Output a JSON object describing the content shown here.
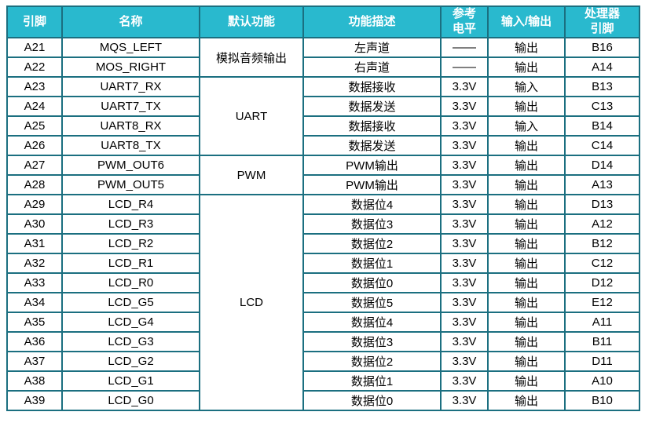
{
  "table": {
    "headers": [
      "引脚",
      "名称",
      "默认功能",
      "功能描述",
      "参考\n电平",
      "输入/输出",
      "处理器\n引脚"
    ],
    "groups": [
      {
        "label": "模拟音频输出",
        "span": 2
      },
      {
        "label": "UART",
        "span": 4
      },
      {
        "label": "PWM",
        "span": 2
      },
      {
        "label": "LCD",
        "span": 11
      }
    ],
    "rows": [
      {
        "pin": "A21",
        "name": "MQS_LEFT",
        "desc": "左声道",
        "level": "——",
        "io": "输出",
        "proc": "B16"
      },
      {
        "pin": "A22",
        "name": "MOS_RIGHT",
        "desc": "右声道",
        "level": "——",
        "io": "输出",
        "proc": "A14"
      },
      {
        "pin": "A23",
        "name": "UART7_RX",
        "desc": "数据接收",
        "level": "3.3V",
        "io": "输入",
        "proc": "B13"
      },
      {
        "pin": "A24",
        "name": "UART7_TX",
        "desc": "数据发送",
        "level": "3.3V",
        "io": "输出",
        "proc": "C13"
      },
      {
        "pin": "A25",
        "name": "UART8_RX",
        "desc": "数据接收",
        "level": "3.3V",
        "io": "输入",
        "proc": "B14"
      },
      {
        "pin": "A26",
        "name": "UART8_TX",
        "desc": "数据发送",
        "level": "3.3V",
        "io": "输出",
        "proc": "C14"
      },
      {
        "pin": "A27",
        "name": "PWM_OUT6",
        "desc": "PWM输出",
        "level": "3.3V",
        "io": "输出",
        "proc": "D14"
      },
      {
        "pin": "A28",
        "name": "PWM_OUT5",
        "desc": "PWM输出",
        "level": "3.3V",
        "io": "输出",
        "proc": "A13"
      },
      {
        "pin": "A29",
        "name": "LCD_R4",
        "desc": "数据位4",
        "level": "3.3V",
        "io": "输出",
        "proc": "D13"
      },
      {
        "pin": "A30",
        "name": "LCD_R3",
        "desc": "数据位3",
        "level": "3.3V",
        "io": "输出",
        "proc": "A12"
      },
      {
        "pin": "A31",
        "name": "LCD_R2",
        "desc": "数据位2",
        "level": "3.3V",
        "io": "输出",
        "proc": "B12"
      },
      {
        "pin": "A32",
        "name": "LCD_R1",
        "desc": "数据位1",
        "level": "3.3V",
        "io": "输出",
        "proc": "C12"
      },
      {
        "pin": "A33",
        "name": "LCD_R0",
        "desc": "数据位0",
        "level": "3.3V",
        "io": "输出",
        "proc": "D12"
      },
      {
        "pin": "A34",
        "name": "LCD_G5",
        "desc": "数据位5",
        "level": "3.3V",
        "io": "输出",
        "proc": "E12"
      },
      {
        "pin": "A35",
        "name": "LCD_G4",
        "desc": "数据位4",
        "level": "3.3V",
        "io": "输出",
        "proc": "A11"
      },
      {
        "pin": "A36",
        "name": "LCD_G3",
        "desc": "数据位3",
        "level": "3.3V",
        "io": "输出",
        "proc": "B11"
      },
      {
        "pin": "A37",
        "name": "LCD_G2",
        "desc": "数据位2",
        "level": "3.3V",
        "io": "输出",
        "proc": "D11"
      },
      {
        "pin": "A38",
        "name": "LCD_G1",
        "desc": "数据位1",
        "level": "3.3V",
        "io": "输出",
        "proc": "A10"
      },
      {
        "pin": "A39",
        "name": "LCD_G0",
        "desc": "数据位0",
        "level": "3.3V",
        "io": "输出",
        "proc": "B10"
      }
    ],
    "colors": {
      "header_bg": "#29b9ce",
      "border": "#1b6f80",
      "header_text": "#ffffff",
      "body_text": "#000000"
    }
  }
}
